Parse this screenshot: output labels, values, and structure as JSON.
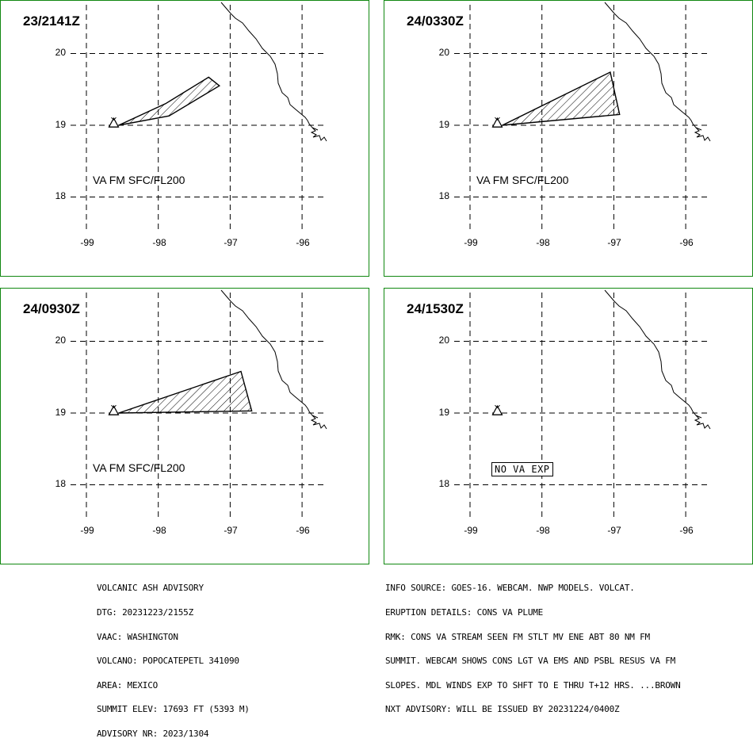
{
  "panels": [
    {
      "title": "23/2141Z",
      "label": "VA FM SFC/FL200",
      "has_ash": true,
      "ash_polygon": [
        [
          -98.55,
          19.0
        ],
        [
          -97.9,
          19.3
        ],
        [
          -97.3,
          19.67
        ],
        [
          -97.15,
          19.55
        ],
        [
          -97.85,
          19.13
        ],
        [
          -98.55,
          19.0
        ]
      ]
    },
    {
      "title": "24/0330Z",
      "label": "VA FM SFC/FL200",
      "has_ash": true,
      "ash_polygon": [
        [
          -98.55,
          19.0
        ],
        [
          -97.05,
          19.74
        ],
        [
          -96.92,
          19.15
        ],
        [
          -98.55,
          19.0
        ]
      ]
    },
    {
      "title": "24/0930Z",
      "label": "VA FM SFC/FL200",
      "has_ash": true,
      "ash_polygon": [
        [
          -98.55,
          19.0
        ],
        [
          -96.85,
          19.58
        ],
        [
          -96.7,
          19.03
        ],
        [
          -98.55,
          19.0
        ]
      ]
    },
    {
      "title": "24/1530Z",
      "label": "NO VA EXP",
      "has_ash": false,
      "ash_polygon": []
    }
  ],
  "axes": {
    "lat_ticks": [
      "20",
      "19",
      "18"
    ],
    "lon_ticks": [
      "-99",
      "-98",
      "-97",
      "-96"
    ],
    "lat_values": [
      20,
      19,
      18
    ],
    "lon_values": [
      -99,
      -98,
      -97,
      -96
    ]
  },
  "volcano": {
    "name": "POPOCATEPETL",
    "lon": -98.62,
    "lat": 19.02
  },
  "advisory_left": [
    "VOLCANIC ASH ADVISORY",
    "DTG: 20231223/2155Z",
    "VAAC: WASHINGTON",
    "VOLCANO: POPOCATEPETL 341090",
    "AREA: MEXICO",
    "SUMMIT ELEV: 17693 FT (5393 M)",
    "ADVISORY NR: 2023/1304"
  ],
  "advisory_right": [
    "INFO SOURCE: GOES-16. WEBCAM. NWP MODELS. VOLCAT.",
    "ERUPTION DETAILS: CONS VA PLUME",
    "RMK: CONS VA STREAM SEEN FM STLT MV ENE ABT 80 NM FM",
    "SUMMIT. WEBCAM SHOWS CONS LGT VA EMS AND PSBL RESUS VA FM",
    "SLOPES. MDL WINDS EXP TO SHFT TO E THRU T+12 HRS. ...BROWN",
    "NXT ADVISORY: WILL BE ISSUED BY 20231224/0400Z"
  ],
  "colors": {
    "frame": "#118811",
    "ink": "#000000"
  }
}
